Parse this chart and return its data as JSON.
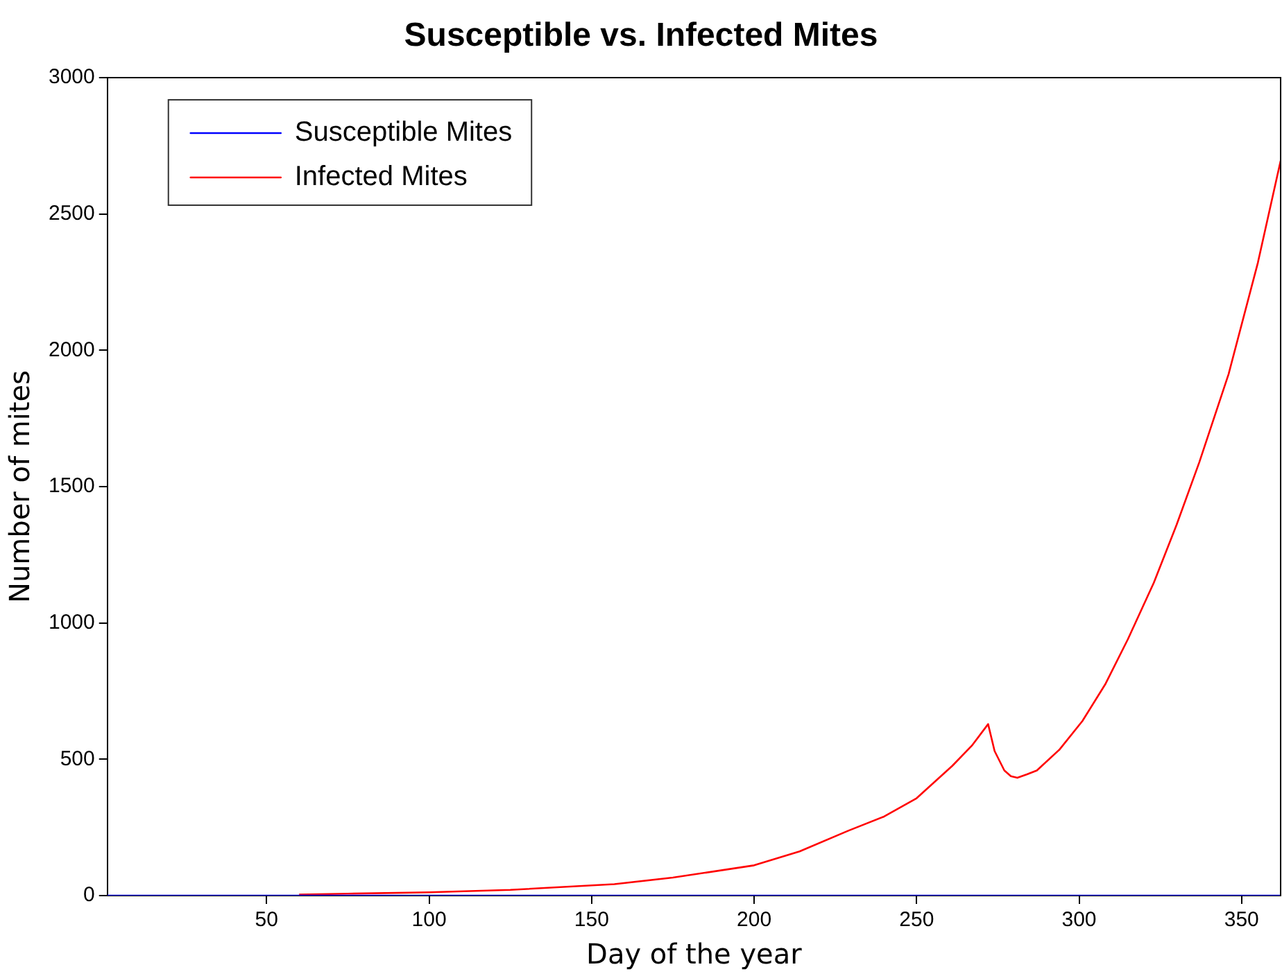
{
  "chart_data": {
    "type": "line",
    "title": "Susceptible vs. Infected  Mites",
    "xlabel": "Day of the year",
    "ylabel": "Number of mites",
    "xlim": [
      1,
      362
    ],
    "xticks": [
      50,
      100,
      150,
      200,
      250,
      300,
      350
    ],
    "ylim": [
      0,
      3000
    ],
    "yticks": [
      0,
      500,
      1000,
      1500,
      2000,
      2500,
      3000
    ],
    "grid": false,
    "legend": "top left",
    "marker": "none",
    "line_style": "solid",
    "series": [
      {
        "name": "Susceptible Mites",
        "color": "#0000ff",
        "x": [
          1,
          50,
          100,
          150,
          200,
          250,
          300,
          362
        ],
        "values": [
          0,
          0,
          0,
          0,
          0,
          0,
          0,
          0
        ]
      },
      {
        "name": "Infected Mites",
        "color": "#ff0000",
        "x": [
          60,
          75,
          100,
          125,
          157,
          175,
          200,
          214,
          229,
          240,
          250,
          261,
          267,
          272,
          274,
          277,
          279,
          281,
          284,
          287,
          294,
          301,
          308,
          315,
          323,
          330,
          337,
          346,
          355,
          362
        ],
        "values": [
          4,
          7,
          12,
          21,
          42,
          66,
          111,
          162,
          238,
          290,
          357,
          476,
          550,
          629,
          530,
          459,
          438,
          432,
          445,
          459,
          536,
          640,
          774,
          940,
          1148,
          1360,
          1590,
          1913,
          2321,
          2695
        ]
      }
    ]
  }
}
